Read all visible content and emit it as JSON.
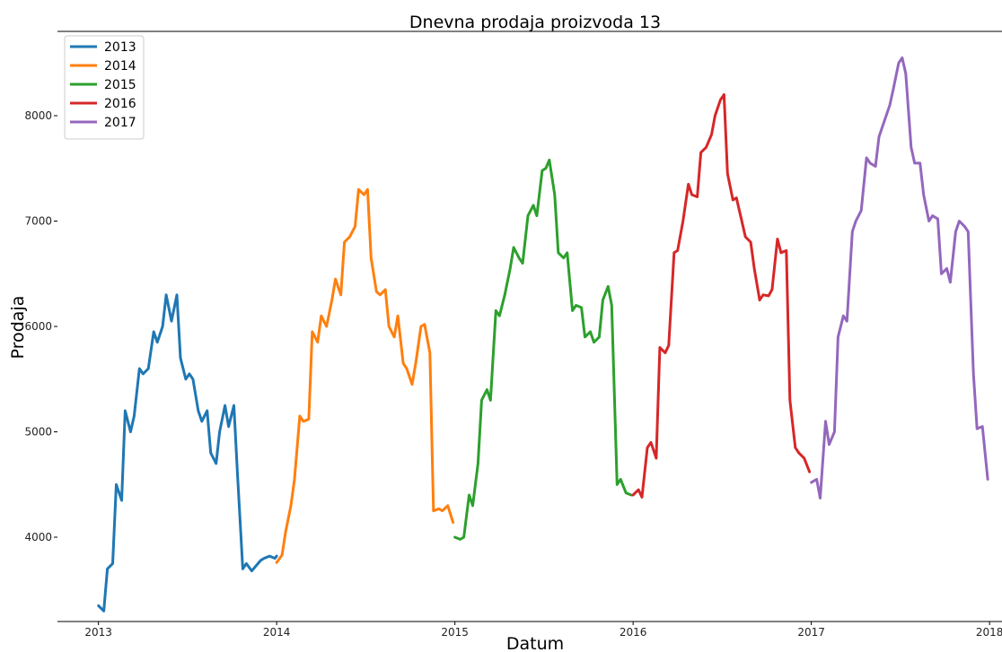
{
  "chart_data": {
    "type": "line",
    "title": "Dnevna prodaja proizvoda 13",
    "xlabel": "Datum",
    "ylabel": "Prodaja",
    "xlim": [
      2012.77,
      2018.07
    ],
    "ylim": [
      3200,
      8800
    ],
    "x_ticks": [
      2013,
      2014,
      2015,
      2016,
      2017,
      2018
    ],
    "x_tick_labels": [
      "2013",
      "2014",
      "2015",
      "2016",
      "2017",
      "2018"
    ],
    "y_ticks": [
      4000,
      5000,
      6000,
      7000,
      8000
    ],
    "y_tick_labels": [
      "4000",
      "5000",
      "6000",
      "7000",
      "8000"
    ],
    "legend_position": "top-left",
    "grid": false,
    "series": [
      {
        "name": "2013",
        "color": "#1f77b4",
        "x": [
          2013.0,
          2013.03,
          2013.05,
          2013.08,
          2013.1,
          2013.13,
          2013.15,
          2013.18,
          2013.2,
          2013.23,
          2013.25,
          2013.28,
          2013.31,
          2013.33,
          2013.36,
          2013.38,
          2013.41,
          2013.44,
          2013.46,
          2013.49,
          2013.51,
          2013.53,
          2013.56,
          2013.58,
          2013.61,
          2013.63,
          2013.66,
          2013.68,
          2013.71,
          2013.73,
          2013.76,
          2013.78,
          2013.81,
          2013.83,
          2013.86,
          2013.88,
          2013.91,
          2013.93,
          2013.96,
          2013.99,
          2014.0
        ],
        "y": [
          3350,
          3300,
          3700,
          3750,
          4500,
          4350,
          5200,
          5000,
          5150,
          5600,
          5550,
          5600,
          5950,
          5850,
          6000,
          6300,
          6050,
          6300,
          5700,
          5500,
          5550,
          5500,
          5200,
          5100,
          5200,
          4800,
          4700,
          5000,
          5250,
          5050,
          5250,
          4600,
          3700,
          3750,
          3680,
          3720,
          3780,
          3800,
          3820,
          3800,
          3820
        ]
      },
      {
        "name": "2014",
        "color": "#ff7f0e",
        "x": [
          2014.0,
          2014.03,
          2014.05,
          2014.08,
          2014.1,
          2014.13,
          2014.15,
          2014.18,
          2014.2,
          2014.23,
          2014.25,
          2014.28,
          2014.31,
          2014.33,
          2014.36,
          2014.38,
          2014.41,
          2014.44,
          2014.46,
          2014.49,
          2014.51,
          2014.53,
          2014.56,
          2014.58,
          2014.61,
          2014.63,
          2014.66,
          2014.68,
          2014.71,
          2014.73,
          2014.76,
          2014.78,
          2014.81,
          2014.83,
          2014.86,
          2014.88,
          2014.91,
          2014.93,
          2014.96,
          2014.99
        ],
        "y": [
          3760,
          3830,
          4050,
          4300,
          4550,
          5150,
          5100,
          5120,
          5950,
          5850,
          6100,
          6000,
          6250,
          6450,
          6300,
          6800,
          6850,
          6950,
          7300,
          7250,
          7300,
          6650,
          6330,
          6300,
          6350,
          6000,
          5900,
          6100,
          5650,
          5600,
          5450,
          5650,
          6000,
          6020,
          5750,
          4250,
          4270,
          4250,
          4300,
          4140
        ]
      },
      {
        "name": "2015",
        "color": "#2ca02c",
        "x": [
          2015.0,
          2015.03,
          2015.05,
          2015.08,
          2015.1,
          2015.13,
          2015.15,
          2015.18,
          2015.2,
          2015.23,
          2015.25,
          2015.28,
          2015.31,
          2015.33,
          2015.36,
          2015.38,
          2015.41,
          2015.44,
          2015.46,
          2015.49,
          2015.51,
          2015.53,
          2015.56,
          2015.58,
          2015.61,
          2015.63,
          2015.66,
          2015.68,
          2015.71,
          2015.73,
          2015.76,
          2015.78,
          2015.81,
          2015.83,
          2015.86,
          2015.88,
          2015.91,
          2015.93,
          2015.96,
          2015.99
        ],
        "y": [
          4000,
          3980,
          4000,
          4400,
          4300,
          4700,
          5300,
          5400,
          5300,
          6150,
          6100,
          6300,
          6550,
          6750,
          6650,
          6600,
          7050,
          7150,
          7050,
          7480,
          7500,
          7580,
          7250,
          6700,
          6650,
          6700,
          6150,
          6200,
          6180,
          5900,
          5950,
          5850,
          5900,
          6250,
          6380,
          6200,
          4500,
          4550,
          4420,
          4400
        ]
      },
      {
        "name": "2016",
        "color": "#d62728",
        "x": [
          2016.0,
          2016.03,
          2016.05,
          2016.08,
          2016.1,
          2016.13,
          2016.15,
          2016.18,
          2016.2,
          2016.23,
          2016.25,
          2016.28,
          2016.31,
          2016.33,
          2016.36,
          2016.38,
          2016.41,
          2016.44,
          2016.46,
          2016.49,
          2016.51,
          2016.53,
          2016.56,
          2016.58,
          2016.61,
          2016.63,
          2016.66,
          2016.68,
          2016.71,
          2016.73,
          2016.76,
          2016.78,
          2016.81,
          2016.83,
          2016.86,
          2016.88,
          2016.91,
          2016.93,
          2016.96,
          2016.99
        ],
        "y": [
          4400,
          4450,
          4380,
          4850,
          4900,
          4750,
          5800,
          5750,
          5820,
          6700,
          6720,
          7000,
          7350,
          7250,
          7230,
          7650,
          7700,
          7820,
          8000,
          8150,
          8200,
          7450,
          7200,
          7220,
          7000,
          6850,
          6800,
          6550,
          6250,
          6300,
          6290,
          6350,
          6830,
          6700,
          6720,
          5300,
          4850,
          4800,
          4750,
          4620
        ]
      },
      {
        "name": "2017",
        "color": "#9467bd",
        "x": [
          2017.0,
          2017.03,
          2017.05,
          2017.08,
          2017.1,
          2017.13,
          2017.15,
          2017.18,
          2017.2,
          2017.23,
          2017.25,
          2017.28,
          2017.31,
          2017.33,
          2017.36,
          2017.38,
          2017.41,
          2017.44,
          2017.46,
          2017.49,
          2017.51,
          2017.53,
          2017.56,
          2017.58,
          2017.61,
          2017.63,
          2017.66,
          2017.68,
          2017.71,
          2017.73,
          2017.76,
          2017.78,
          2017.81,
          2017.83,
          2017.86,
          2017.88,
          2017.91,
          2017.93,
          2017.96,
          2017.99
        ],
        "y": [
          4520,
          4550,
          4370,
          5100,
          4880,
          5000,
          5900,
          6100,
          6050,
          6900,
          7000,
          7100,
          7600,
          7550,
          7520,
          7800,
          7950,
          8100,
          8250,
          8500,
          8550,
          8400,
          7700,
          7550,
          7550,
          7250,
          7000,
          7050,
          7020,
          6500,
          6550,
          6420,
          6900,
          7000,
          6950,
          6900,
          5550,
          5030,
          5050,
          4550
        ]
      }
    ]
  }
}
